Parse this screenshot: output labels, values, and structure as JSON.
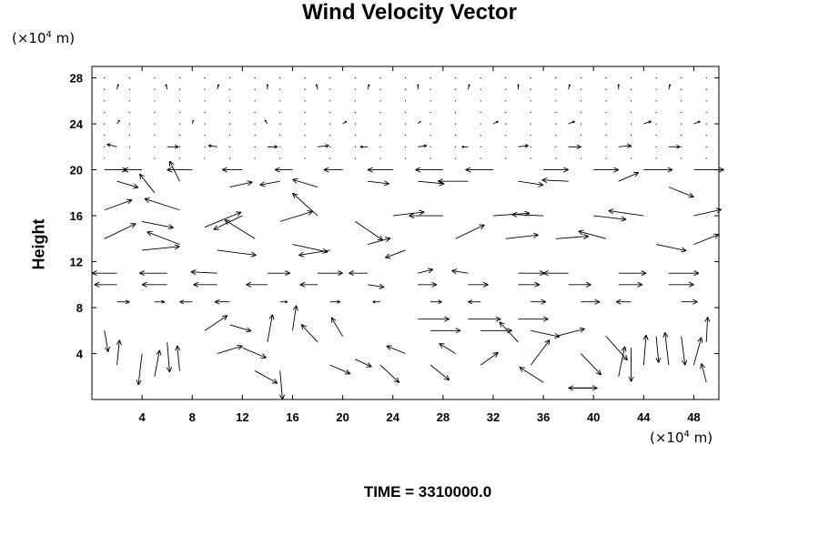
{
  "chart_data": {
    "type": "vector-field",
    "title": "Wind Velocity Vector",
    "ylabel": "Height",
    "xunit": {
      "prefix": "(×10",
      "exp": "4",
      "suffix": " m)"
    },
    "yunit": {
      "prefix": "(×10",
      "exp": "4",
      "suffix": " m)"
    },
    "xlim": [
      0,
      50
    ],
    "ylim": [
      0,
      29
    ],
    "xticks": [
      4,
      8,
      12,
      16,
      20,
      24,
      28,
      32,
      36,
      40,
      44,
      48
    ],
    "yticks": [
      4,
      8,
      12,
      16,
      20,
      24,
      28
    ],
    "grid": false,
    "vectors": [
      [
        2,
        27,
        0.1,
        0.4
      ],
      [
        6,
        27,
        -0.1,
        0.4
      ],
      [
        10,
        27,
        0.1,
        0.4
      ],
      [
        14,
        27,
        0,
        0.4
      ],
      [
        18,
        27,
        -0.1,
        0.4
      ],
      [
        22,
        27,
        0.1,
        0.4
      ],
      [
        26,
        27,
        0,
        0.4
      ],
      [
        30,
        27,
        0.1,
        0.4
      ],
      [
        34,
        27,
        0,
        0.4
      ],
      [
        38,
        27,
        0.1,
        0.4
      ],
      [
        42,
        27,
        0,
        0.4
      ],
      [
        46,
        27,
        0.1,
        0.4
      ],
      [
        2,
        24,
        0.2,
        0.3
      ],
      [
        8,
        24,
        0.1,
        0.3
      ],
      [
        14,
        24,
        -0.2,
        0.3
      ],
      [
        20,
        24,
        0.3,
        0.2
      ],
      [
        26,
        24,
        0.2,
        0.2
      ],
      [
        32,
        24,
        0.4,
        0.2
      ],
      [
        38,
        24,
        0.5,
        0.2
      ],
      [
        44,
        24,
        0.6,
        0.2
      ],
      [
        48,
        24,
        0.5,
        0.2
      ],
      [
        2,
        22,
        -0.8,
        0.2
      ],
      [
        6,
        22,
        0.9,
        0
      ],
      [
        10,
        22,
        -0.7,
        0.1
      ],
      [
        14,
        22,
        0.8,
        0
      ],
      [
        18,
        22,
        0.9,
        0.1
      ],
      [
        22,
        22,
        -0.6,
        0
      ],
      [
        26,
        22,
        0.7,
        0.1
      ],
      [
        30,
        22,
        -0.5,
        0
      ],
      [
        34,
        22,
        0.8,
        0.1
      ],
      [
        38,
        22,
        1.0,
        0
      ],
      [
        42,
        22,
        1.0,
        0.1
      ],
      [
        46,
        22,
        0.9,
        0
      ],
      [
        1,
        20,
        1.8,
        0
      ],
      [
        4,
        20,
        -1.5,
        0
      ],
      [
        8,
        20,
        -2.0,
        0
      ],
      [
        12,
        20,
        -1.6,
        0
      ],
      [
        16,
        20,
        -1.4,
        0
      ],
      [
        20,
        20,
        -1.5,
        0
      ],
      [
        24,
        20,
        -2.0,
        0
      ],
      [
        28,
        20,
        -2.2,
        0
      ],
      [
        32,
        20,
        -2.2,
        0
      ],
      [
        36,
        20,
        2.0,
        0
      ],
      [
        40,
        20,
        2.0,
        0
      ],
      [
        44,
        20,
        2.3,
        0
      ],
      [
        48,
        20,
        2.4,
        0
      ],
      [
        2,
        19,
        1.7,
        -0.5
      ],
      [
        5,
        18,
        -1.2,
        1.5
      ],
      [
        7,
        19,
        -0.8,
        1.6
      ],
      [
        11,
        18.5,
        1.8,
        0.4
      ],
      [
        15,
        19,
        -1.6,
        -0.3
      ],
      [
        18,
        18.5,
        -2.0,
        0.6
      ],
      [
        22,
        19,
        1.7,
        -0.2
      ],
      [
        26,
        19,
        2.1,
        -0.2
      ],
      [
        30,
        19,
        -2.4,
        0
      ],
      [
        34,
        19,
        2.0,
        -0.3
      ],
      [
        38,
        19,
        -2.1,
        0.1
      ],
      [
        42,
        19,
        1.6,
        0.7
      ],
      [
        46,
        18.5,
        2.0,
        -0.8
      ],
      [
        1,
        16.5,
        2.2,
        0.8
      ],
      [
        4,
        15.5,
        2.5,
        -0.5
      ],
      [
        7,
        16.5,
        -2.8,
        0.9
      ],
      [
        9,
        15,
        2.9,
        1.2
      ],
      [
        12,
        16,
        -2.3,
        -1.1
      ],
      [
        15,
        15.5,
        2.6,
        0.8
      ],
      [
        18,
        16,
        -2.0,
        1.8
      ],
      [
        21,
        15.5,
        2.2,
        -1.5
      ],
      [
        24,
        16,
        2.5,
        0.3
      ],
      [
        28,
        16,
        -2.7,
        0
      ],
      [
        32,
        16,
        2.9,
        0.2
      ],
      [
        36,
        16,
        -2.5,
        0.1
      ],
      [
        40,
        16,
        2.6,
        -0.3
      ],
      [
        44,
        16,
        -2.8,
        0.4
      ],
      [
        48,
        16,
        2.2,
        0.5
      ],
      [
        1,
        14,
        2.5,
        1.2
      ],
      [
        4,
        13,
        3.0,
        0.3
      ],
      [
        7,
        13.5,
        -2.6,
        1.0
      ],
      [
        10,
        13,
        3.1,
        -0.4
      ],
      [
        13,
        14,
        -2.4,
        1.5
      ],
      [
        16,
        13.5,
        2.8,
        -0.6
      ],
      [
        19,
        13,
        -2.5,
        -0.4
      ],
      [
        22,
        13.5,
        1.8,
        0.5
      ],
      [
        25,
        13,
        -1.6,
        -0.6
      ],
      [
        29,
        14,
        2.3,
        1.1
      ],
      [
        33,
        14,
        2.6,
        0.3
      ],
      [
        37,
        14,
        2.6,
        0.2
      ],
      [
        41,
        14,
        -2.2,
        0.6
      ],
      [
        45,
        13.5,
        2.4,
        -0.5
      ],
      [
        48,
        13.5,
        2.0,
        0.8
      ],
      [
        2,
        11,
        -2.0,
        0
      ],
      [
        6,
        11,
        -2.2,
        0
      ],
      [
        10,
        11,
        -2.1,
        0.1
      ],
      [
        14,
        11,
        1.8,
        0
      ],
      [
        18,
        11,
        2.0,
        0
      ],
      [
        22,
        11,
        -1.5,
        0
      ],
      [
        26,
        11,
        1.2,
        0.3
      ],
      [
        30,
        11,
        -1.3,
        0.2
      ],
      [
        34,
        11,
        2.1,
        0
      ],
      [
        38,
        11,
        -2.0,
        0
      ],
      [
        42,
        11,
        2.2,
        0
      ],
      [
        46,
        11,
        2.4,
        0
      ],
      [
        2,
        10,
        -1.8,
        0
      ],
      [
        6,
        10,
        -2.0,
        0
      ],
      [
        10,
        10,
        -1.9,
        0
      ],
      [
        14,
        10,
        -1.7,
        0
      ],
      [
        18,
        10,
        -1.4,
        0
      ],
      [
        22,
        10,
        1.3,
        -0.2
      ],
      [
        26,
        10,
        1.5,
        0
      ],
      [
        30,
        10,
        1.6,
        0
      ],
      [
        34,
        10,
        1.7,
        0
      ],
      [
        38,
        10,
        1.8,
        0
      ],
      [
        42,
        10,
        1.9,
        0
      ],
      [
        46,
        10,
        2.0,
        0
      ],
      [
        2,
        8.5,
        1.0,
        0
      ],
      [
        5,
        8.5,
        0.8,
        0
      ],
      [
        8,
        8.5,
        -1.0,
        0
      ],
      [
        11,
        8.5,
        -1.2,
        0
      ],
      [
        15,
        8.5,
        0.6,
        0
      ],
      [
        19,
        8.5,
        0.8,
        0
      ],
      [
        23,
        8.5,
        -0.6,
        0
      ],
      [
        27,
        8.5,
        0.9,
        0
      ],
      [
        31,
        8.5,
        -1.0,
        0
      ],
      [
        35,
        8.5,
        1.2,
        0
      ],
      [
        39,
        8.5,
        1.5,
        0
      ],
      [
        43,
        8.5,
        -1.2,
        0
      ],
      [
        47,
        8.5,
        1.3,
        0
      ],
      [
        26,
        7,
        2.5,
        0
      ],
      [
        30,
        7,
        2.6,
        0
      ],
      [
        34,
        7,
        2.4,
        0
      ],
      [
        27,
        6,
        2.4,
        0
      ],
      [
        31,
        6,
        2.5,
        0
      ],
      [
        35,
        6,
        2.3,
        -0.5
      ],
      [
        1,
        6,
        0.3,
        -1.7
      ],
      [
        2,
        3,
        0.2,
        2.0
      ],
      [
        4,
        4,
        -0.3,
        -2.5
      ],
      [
        5,
        2,
        0.4,
        2.1
      ],
      [
        6,
        5,
        0.2,
        -2.4
      ],
      [
        7,
        2.5,
        -0.2,
        2.0
      ],
      [
        9,
        6,
        1.8,
        1.2
      ],
      [
        10,
        4,
        2.0,
        0.6
      ],
      [
        11,
        6.5,
        1.7,
        -0.5
      ],
      [
        12,
        4.5,
        1.9,
        -0.8
      ],
      [
        13,
        2.5,
        1.8,
        -1.0
      ],
      [
        14,
        5,
        0.4,
        2.2
      ],
      [
        15,
        2.5,
        0.2,
        -2.3
      ],
      [
        16,
        6,
        0.3,
        2.0
      ],
      [
        18,
        5,
        -1.3,
        1.4
      ],
      [
        19,
        3,
        1.6,
        -0.7
      ],
      [
        20,
        5.5,
        -0.9,
        1.5
      ],
      [
        21,
        3.5,
        1.3,
        -0.6
      ],
      [
        23,
        3,
        1.5,
        -1.4
      ],
      [
        25,
        4,
        -1.5,
        0.6
      ],
      [
        27,
        3,
        1.5,
        -1.2
      ],
      [
        29,
        4,
        -1.3,
        0.8
      ],
      [
        31,
        3,
        1.4,
        1.0
      ],
      [
        34,
        5,
        -1.5,
        1.6
      ],
      [
        35,
        3,
        1.5,
        2.0
      ],
      [
        36,
        1.5,
        -1.9,
        1.2
      ],
      [
        37,
        5.5,
        2.3,
        0.6
      ],
      [
        38,
        1,
        2.3,
        0
      ],
      [
        39,
        4,
        1.6,
        -1.7
      ],
      [
        40,
        1,
        -2.0,
        0
      ],
      [
        41,
        5.5,
        1.7,
        -1.9
      ],
      [
        42,
        2,
        0.5,
        2.4
      ],
      [
        43,
        4.5,
        0,
        -2.7
      ],
      [
        44,
        3,
        0.2,
        2.4
      ],
      [
        45,
        5.5,
        0.2,
        -2.1
      ],
      [
        46,
        3,
        -0.3,
        2.6
      ],
      [
        47,
        5.5,
        0.3,
        -2.3
      ],
      [
        48,
        3,
        0.6,
        2.2
      ],
      [
        49,
        5,
        0.1,
        2.0
      ],
      [
        49,
        1.5,
        -0.4,
        1.5
      ]
    ]
  },
  "footer": {
    "time_label": "TIME = 3310000.0"
  }
}
